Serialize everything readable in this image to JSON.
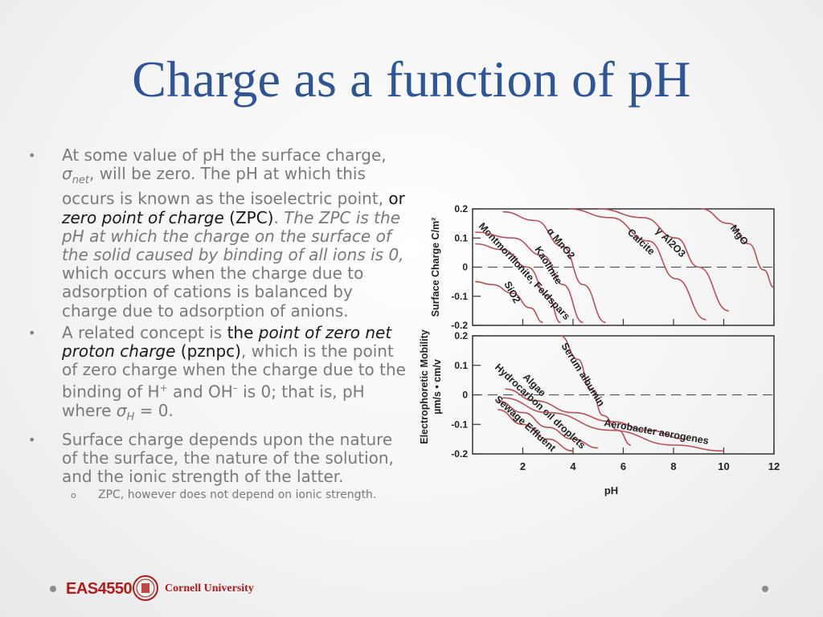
{
  "slide": {
    "title": "Charge as a function of pH"
  },
  "bullets": {
    "b1": {
      "p1": "At some value of pH the surface charge, ",
      "sigma": "σ",
      "sigma_sub": "net",
      "p2": ", will be zero. The pH at which this occurs is known as the isoelectric point, ",
      "p3": "or ",
      "p4": "zero point of charge",
      "p5": " (ZPC)",
      "p6": ". ",
      "p7": "The ZPC is the pH at which the charge on the surface of the solid caused by binding of all ions is 0,",
      "p8": " which occurs when the charge due to adsorption of cations is balanced by charge due to adsorption of anions."
    },
    "b2": {
      "p1": "A related concept is ",
      "p2": "the ",
      "p3": "point of zero net proton charge",
      "p4": " (pznpc)",
      "p5": ", which is the point of zero charge when the charge due to the binding of H",
      "sup1": "+",
      "p6": " and OH",
      "sup2": "–",
      "p7": " is 0; that is, pH where ",
      "sigma": "σ",
      "sigma_sub": "H",
      "p8": " = 0."
    },
    "b3": {
      "text": "Surface charge depends upon the nature of the surface, the nature of the solution, and the ionic strength of the latter."
    },
    "sub1": {
      "text": "ZPC, however does not depend on ionic strength."
    },
    "marker": "•",
    "sub_marker": "o"
  },
  "footer": {
    "course": "EAS4550",
    "university": "Cornell University"
  },
  "chart_data": [
    {
      "type": "line",
      "ylabel": "Surface Charge C/m²",
      "ylim": [
        -0.2,
        0.2
      ],
      "y_ticks": [
        "0.2",
        "0.1",
        "0",
        "-0.1",
        "-0.2"
      ],
      "xlim": [
        0,
        12
      ],
      "zero_line": "dashed",
      "series": [
        {
          "name": "SiO2",
          "points": [
            [
              0.1,
              -0.05
            ],
            [
              0.8,
              -0.06
            ],
            [
              1.6,
              -0.09
            ],
            [
              2.3,
              -0.14
            ],
            [
              2.8,
              -0.19
            ]
          ]
        },
        {
          "name": "Montmorillonite, Feldspars",
          "points": [
            [
              0.1,
              0.08
            ],
            [
              1.2,
              0.06
            ],
            [
              2.2,
              0.0
            ],
            [
              3.0,
              -0.1
            ],
            [
              3.5,
              -0.19
            ]
          ]
        },
        {
          "name": "Kaolinite",
          "points": [
            [
              0.1,
              0.12
            ],
            [
              1.6,
              0.1
            ],
            [
              2.8,
              0.04
            ],
            [
              3.6,
              -0.06
            ],
            [
              4.4,
              -0.19
            ]
          ]
        },
        {
          "name": "α MnO2",
          "points": [
            [
              1.2,
              0.19
            ],
            [
              2.5,
              0.16
            ],
            [
              3.6,
              0.07
            ],
            [
              4.4,
              -0.06
            ],
            [
              5.3,
              -0.19
            ]
          ]
        },
        {
          "name": "Calcite",
          "points": [
            [
              3.8,
              0.2
            ],
            [
              5.5,
              0.17
            ],
            [
              7.0,
              0.09
            ],
            [
              8.1,
              -0.04
            ],
            [
              9.3,
              -0.18
            ]
          ]
        },
        {
          "name": "γ Al2O3",
          "points": [
            [
              5.0,
              0.2
            ],
            [
              6.8,
              0.17
            ],
            [
              8.1,
              0.1
            ],
            [
              9.0,
              0.0
            ],
            [
              10.2,
              -0.15
            ]
          ]
        },
        {
          "name": "MgO",
          "points": [
            [
              9.1,
              0.2
            ],
            [
              10.2,
              0.15
            ],
            [
              11.0,
              0.08
            ],
            [
              11.6,
              -0.01
            ],
            [
              12.0,
              -0.07
            ]
          ]
        }
      ]
    },
    {
      "type": "line",
      "ylabel": "Electrophoretic Mobility µm/s • cm/v",
      "xlabel": "pH",
      "ylim": [
        -0.2,
        0.2
      ],
      "y_ticks": [
        "0.2",
        "0.1",
        "0",
        "-0.1",
        "-0.2"
      ],
      "xlim": [
        0,
        12
      ],
      "x_ticks": [
        "2",
        "4",
        "6",
        "8",
        "10",
        "12"
      ],
      "zero_line": "dashed",
      "series": [
        {
          "name": "Serum albumin",
          "points": [
            [
              3.5,
              0.2
            ],
            [
              4.2,
              0.12
            ],
            [
              4.7,
              0.02
            ],
            [
              5.2,
              -0.07
            ],
            [
              5.8,
              -0.12
            ],
            [
              6.3,
              -0.17
            ]
          ]
        },
        {
          "name": "Algae",
          "points": [
            [
              1.3,
              0.02
            ],
            [
              2.5,
              -0.02
            ],
            [
              4.0,
              -0.06
            ],
            [
              5.5,
              -0.09
            ],
            [
              7.0,
              -0.12
            ],
            [
              8.5,
              -0.15
            ]
          ]
        },
        {
          "name": "Hydrocarbon oil droplets",
          "points": [
            [
              1.0,
              -0.02
            ],
            [
              2.0,
              -0.06
            ],
            [
              3.0,
              -0.11
            ],
            [
              4.0,
              -0.15
            ],
            [
              5.0,
              -0.18
            ]
          ]
        },
        {
          "name": "Sewage Effluent",
          "points": [
            [
              1.0,
              -0.05
            ],
            [
              2.0,
              -0.1
            ],
            [
              3.0,
              -0.15
            ],
            [
              4.0,
              -0.19
            ]
          ]
        },
        {
          "name": "Aerobacter aerogenes",
          "points": [
            [
              1.2,
              -0.01
            ],
            [
              3.0,
              -0.06
            ],
            [
              5.5,
              -0.12
            ],
            [
              8.0,
              -0.17
            ],
            [
              10.0,
              -0.19
            ]
          ]
        }
      ]
    }
  ]
}
